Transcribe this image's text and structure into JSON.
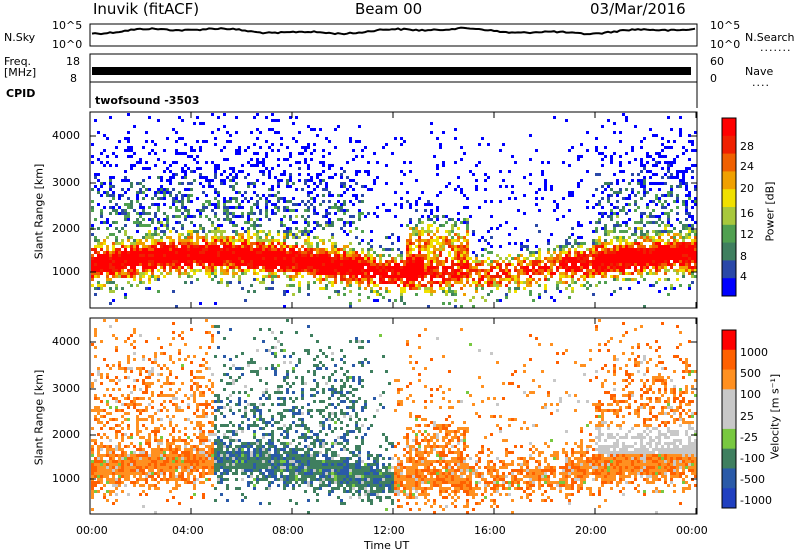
{
  "header": {
    "station": "Inuvik (fitACF)",
    "beam": "Beam 00",
    "date": "03/Mar/2016"
  },
  "top_panels": {
    "nsky_label": "N.Sky",
    "nsky_ticks": [
      "10^5",
      "10^0"
    ],
    "nsearch_label": "N.Search",
    "nsearch_ticks": [
      "10^5",
      "10^0"
    ],
    "freq_label": "Freq.",
    "freq_unit": "[MHz]",
    "freq_ticks": [
      "18",
      "8"
    ],
    "nave_label": "Nave",
    "nave_ticks": [
      "60",
      "0"
    ],
    "cpid_label": "CPID",
    "cpid_value": "twofsound -3503"
  },
  "colors": {
    "power_scale": [
      "#0000ff",
      "#2a48a8",
      "#3f7f5f",
      "#50a050",
      "#a8c83c",
      "#f0e000",
      "#f0a000",
      "#f06000",
      "#f02000",
      "#ff0000"
    ],
    "velocity_scale": [
      "#ff0000",
      "#ff6000",
      "#ff9020",
      "#c8c8c8",
      "#c8c8c8",
      "#78c840",
      "#3f7f5f",
      "#2a5aa8",
      "#2040c0"
    ]
  },
  "chart_data": [
    {
      "type": "heatmap",
      "title": "",
      "ylabel": "Slant Range [km]",
      "ylim": [
        200,
        4500
      ],
      "yticks": [
        "1000",
        "2000",
        "3000",
        "4000"
      ],
      "colorbar_label": "Power [dB]",
      "colorbar_ticks": [
        "28",
        "24",
        "20",
        "16",
        "12",
        "8",
        "4"
      ]
    },
    {
      "type": "heatmap",
      "title": "",
      "xlabel": "Time UT",
      "ylabel": "Slant Range [km]",
      "ylim": [
        200,
        4500
      ],
      "yticks": [
        "1000",
        "2000",
        "3000",
        "4000"
      ],
      "xticks": [
        "00:00",
        "04:00",
        "08:00",
        "12:00",
        "16:00",
        "20:00",
        "00:00"
      ],
      "colorbar_label": "Velocity [m s⁻¹]",
      "colorbar_ticks": [
        "1000",
        "500",
        "100",
        "25",
        "-25",
        "-100",
        "-500",
        "-1000"
      ]
    }
  ]
}
